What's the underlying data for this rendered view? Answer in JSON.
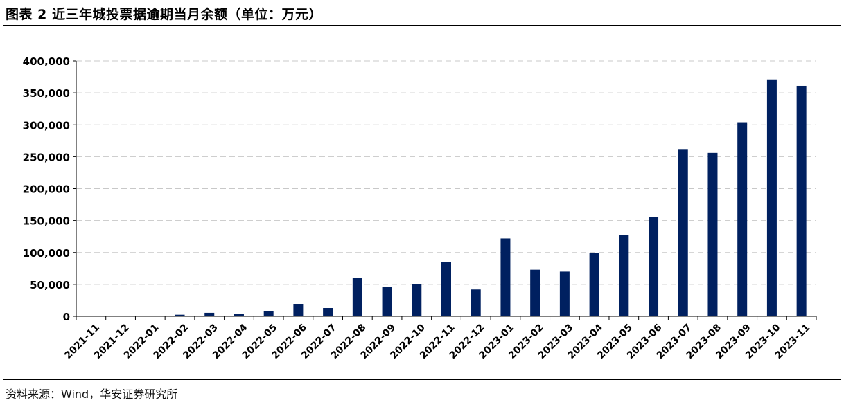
{
  "title": "图表 2  近三年城投票据逾期当月余额（单位：万元）",
  "source": "资料来源：Wind，华安证券研究所",
  "colors": {
    "bar": "#002060",
    "grid": "#c8c8c8",
    "axis": "#000000"
  },
  "chart_data": {
    "type": "bar",
    "title": "近三年城投票据逾期当月余额",
    "xlabel": "",
    "ylabel": "",
    "ylim": [
      0,
      400000
    ],
    "yticks": [
      0,
      50000,
      100000,
      150000,
      200000,
      250000,
      300000,
      350000,
      400000
    ],
    "ytick_labels": [
      "0",
      "50,000",
      "100,000",
      "150,000",
      "200,000",
      "250,000",
      "300,000",
      "350,000",
      "400,000"
    ],
    "grid": true,
    "legend": "none",
    "categories": [
      "2021-11",
      "2021-12",
      "2022-01",
      "2022-02",
      "2022-03",
      "2022-04",
      "2022-05",
      "2022-06",
      "2022-07",
      "2022-08",
      "2022-09",
      "2022-10",
      "2022-11",
      "2022-12",
      "2023-01",
      "2023-02",
      "2023-03",
      "2023-04",
      "2023-05",
      "2023-06",
      "2023-07",
      "2023-08",
      "2023-09",
      "2023-10",
      "2023-11"
    ],
    "values": [
      500,
      300,
      300,
      2500,
      5500,
      3500,
      8000,
      19500,
      13000,
      60500,
      46000,
      50000,
      85000,
      42000,
      122000,
      73000,
      70000,
      99000,
      127000,
      156000,
      262000,
      256000,
      304000,
      371000,
      361000
    ]
  }
}
